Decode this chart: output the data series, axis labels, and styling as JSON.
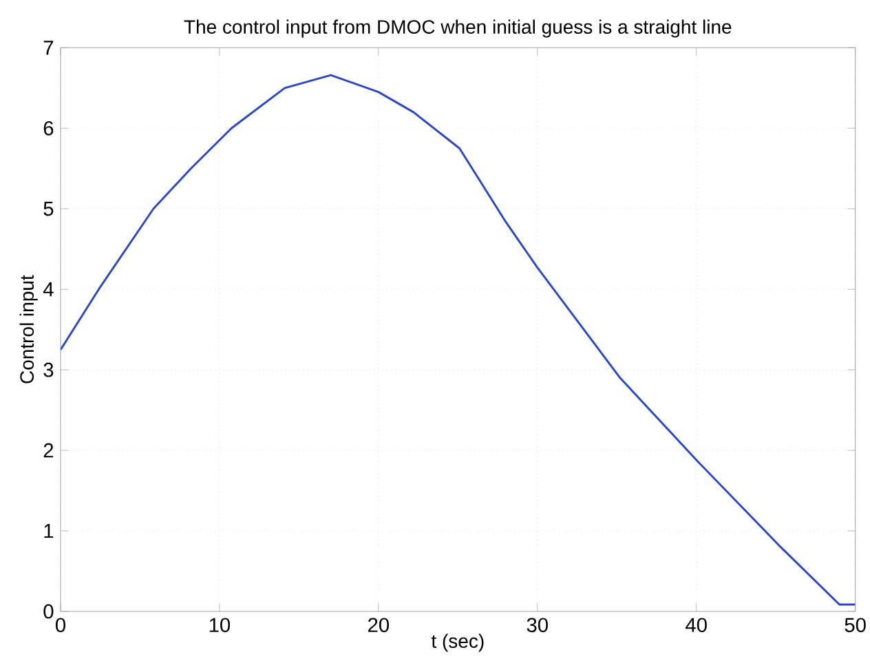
{
  "chart_data": {
    "type": "line",
    "title": "The control input from DMOC when initial guess is a straight line",
    "xlabel": "t (sec)",
    "ylabel": "Control input",
    "x": [
      0,
      2.4,
      5.84,
      8.2,
      10.75,
      14.1,
      17,
      20,
      22.2,
      25.1,
      28,
      30,
      35.2,
      40,
      45.3,
      49,
      50
    ],
    "series": [
      {
        "color": "#2b46c8",
        "values": [
          3.25,
          4,
          5,
          5.5,
          6,
          6.5,
          6.66,
          6.45,
          6.2,
          5.75,
          4.84,
          4.27,
          2.9,
          1.88,
          0.8,
          0.085,
          0.085
        ]
      }
    ],
    "xlim": [
      0,
      50
    ],
    "ylim": [
      0,
      7
    ],
    "xticks": [
      0,
      10,
      20,
      30,
      40,
      50
    ],
    "yticks": [
      0,
      1,
      2,
      3,
      4,
      5,
      6,
      7
    ],
    "grid": true,
    "line_style": "solid"
  }
}
